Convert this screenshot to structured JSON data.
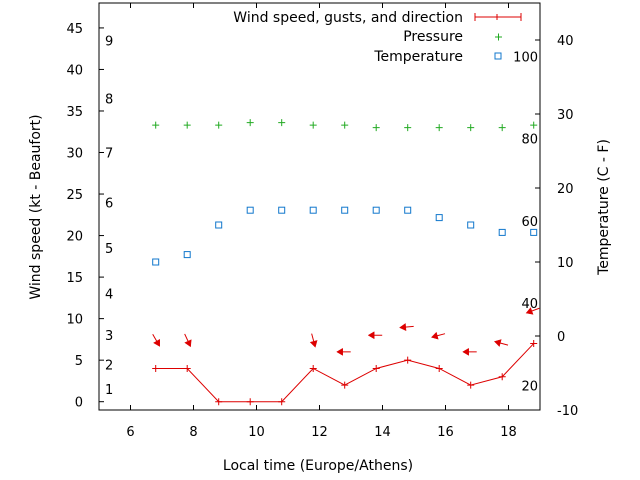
{
  "chart_data": {
    "type": "line",
    "xlabel": "Local time (Europe/Athens)",
    "ylabel_left": "Wind speed (kt - Beaufort)",
    "ylabel_right": "Temperature (C - F)",
    "xlim": [
      5,
      19
    ],
    "ylim_left": [
      -1,
      48
    ],
    "ylim_right": [
      -10,
      45
    ],
    "x_ticks": [
      "6",
      "8",
      "10",
      "12",
      "14",
      "16",
      "18"
    ],
    "y_ticks_left": [
      "0",
      "5",
      "10",
      "15",
      "20",
      "25",
      "30",
      "35",
      "40",
      "45"
    ],
    "y_ticks_right": [
      "-10",
      "0",
      "10",
      "20",
      "30",
      "40"
    ],
    "beaufort_labels": [
      "1",
      "2",
      "3",
      "4",
      "5",
      "6",
      "7",
      "8",
      "9"
    ],
    "fahrenheit_labels": [
      "20",
      "40",
      "60",
      "80",
      "100"
    ],
    "legend": {
      "wind": "Wind speed, gusts, and direction",
      "pressure": "Pressure",
      "temperature": "Temperature"
    },
    "colors": {
      "wind": "#dd0000",
      "pressure": "#22aa22",
      "temperature": "#1177cc"
    },
    "series": [
      {
        "name": "Wind speed, gusts, and direction",
        "axis": "left",
        "x": [
          6.8,
          7.8,
          8.8,
          9.8,
          10.8,
          11.8,
          12.8,
          13.8,
          14.8,
          15.8,
          16.8,
          17.8,
          18.8
        ],
        "values": [
          4,
          4,
          0,
          0,
          0,
          4,
          2,
          4,
          5,
          4,
          2,
          3,
          7
        ]
      },
      {
        "name": "Pressure",
        "axis": "left",
        "x": [
          6.8,
          7.8,
          8.8,
          9.8,
          10.8,
          11.8,
          12.8,
          13.8,
          14.8,
          15.8,
          16.8,
          17.8,
          18.8
        ],
        "values": [
          33.3,
          33.3,
          33.3,
          33.6,
          33.6,
          33.3,
          33.3,
          33.0,
          33.0,
          33.0,
          33.0,
          33.0,
          33.3
        ]
      },
      {
        "name": "Temperature",
        "axis": "right",
        "x": [
          6.8,
          7.8,
          8.8,
          9.8,
          10.8,
          11.8,
          12.8,
          13.8,
          14.8,
          15.8,
          16.8,
          17.8,
          18.8
        ],
        "values": [
          10,
          11,
          15,
          17,
          17,
          17,
          17,
          17,
          17,
          16,
          15,
          14,
          14
        ]
      }
    ],
    "wind_direction_arrows": [
      {
        "x": 6.8,
        "y": 7.5,
        "angle": 60
      },
      {
        "x": 7.8,
        "y": 7.5,
        "angle": 65
      },
      {
        "x": 11.8,
        "y": 7.5,
        "angle": 75
      },
      {
        "x": 12.8,
        "y": 6,
        "angle": 180
      },
      {
        "x": 13.8,
        "y": 8,
        "angle": 180
      },
      {
        "x": 14.8,
        "y": 9,
        "angle": 175
      },
      {
        "x": 15.8,
        "y": 8,
        "angle": 165
      },
      {
        "x": 16.8,
        "y": 6,
        "angle": 180
      },
      {
        "x": 17.8,
        "y": 7,
        "angle": 195
      },
      {
        "x": 18.8,
        "y": 11,
        "angle": 160
      }
    ]
  }
}
